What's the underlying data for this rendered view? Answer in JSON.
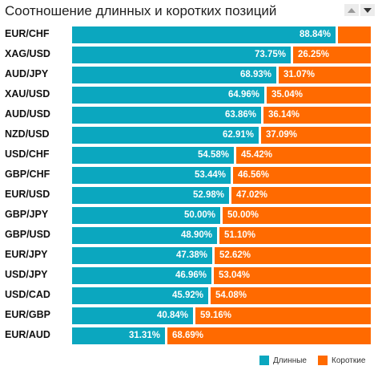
{
  "chart_data": {
    "type": "bar",
    "orientation": "horizontal",
    "stacked": true,
    "title": "Соотношение длинных и коротких позиций",
    "categories": [
      "EUR/CHF",
      "XAG/USD",
      "AUD/JPY",
      "XAU/USD",
      "AUD/USD",
      "NZD/USD",
      "USD/CHF",
      "GBP/CHF",
      "EUR/USD",
      "GBP/JPY",
      "GBP/USD",
      "EUR/JPY",
      "USD/JPY",
      "USD/CAD",
      "EUR/GBP",
      "EUR/AUD"
    ],
    "series": [
      {
        "name": "Длинные",
        "color": "#0ba7bf",
        "values": [
          88.84,
          73.75,
          68.93,
          64.96,
          63.86,
          62.91,
          54.58,
          53.44,
          52.98,
          50.0,
          48.9,
          47.38,
          46.96,
          45.92,
          40.84,
          31.31
        ]
      },
      {
        "name": "Короткие",
        "color": "#ff6a00",
        "values": [
          11.16,
          26.25,
          31.07,
          35.04,
          36.14,
          37.09,
          45.42,
          46.56,
          47.02,
          50.0,
          51.1,
          52.62,
          53.04,
          54.08,
          59.16,
          68.69
        ]
      }
    ],
    "long_labels": [
      "88.84%",
      "73.75%",
      "68.93%",
      "64.96%",
      "63.86%",
      "62.91%",
      "54.58%",
      "53.44%",
      "52.98%",
      "50.00%",
      "48.90%",
      "47.38%",
      "46.96%",
      "45.92%",
      "40.84%",
      "31.31%"
    ],
    "short_labels": [
      "",
      "26.25%",
      "31.07%",
      "35.04%",
      "36.14%",
      "37.09%",
      "45.42%",
      "46.56%",
      "47.02%",
      "50.00%",
      "51.10%",
      "52.62%",
      "53.04%",
      "54.08%",
      "59.16%",
      "68.69%"
    ],
    "xlim": [
      0,
      100
    ],
    "legend_position": "bottom-right"
  },
  "legend": {
    "long_label": "Длинные",
    "short_label": "Короткие"
  },
  "icons": {
    "sort_up": "triangle-up-icon",
    "sort_down": "triangle-down-icon"
  }
}
